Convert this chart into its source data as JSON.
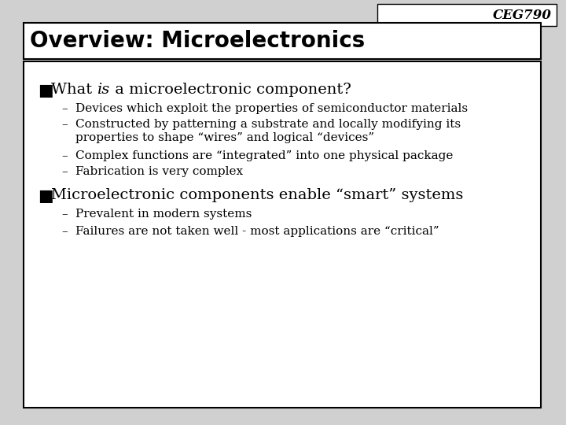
{
  "slide_bg": "#d0d0d0",
  "header_text": "CEG790",
  "title_text": "Overview: Microelectronics",
  "sub_bullets1": [
    "Devices which exploit the properties of semiconductor materials",
    "Constructed by patterning a substrate and locally modifying its\nproperties to shape “wires” and logical “devices”",
    "Complex functions are “integrated” into one physical package",
    "Fabrication is very complex"
  ],
  "bullet2": "Microelectronic components enable “smart” systems",
  "sub_bullets2": [
    "Prevalent in modern systems",
    "Failures are not taken well - most applications are “critical”"
  ],
  "title_fontsize": 20,
  "header_fontsize": 12,
  "bullet_fontsize": 14,
  "sub_fontsize": 11,
  "text_color": "#000000",
  "box_edge_color": "#000000",
  "white": "#ffffff"
}
